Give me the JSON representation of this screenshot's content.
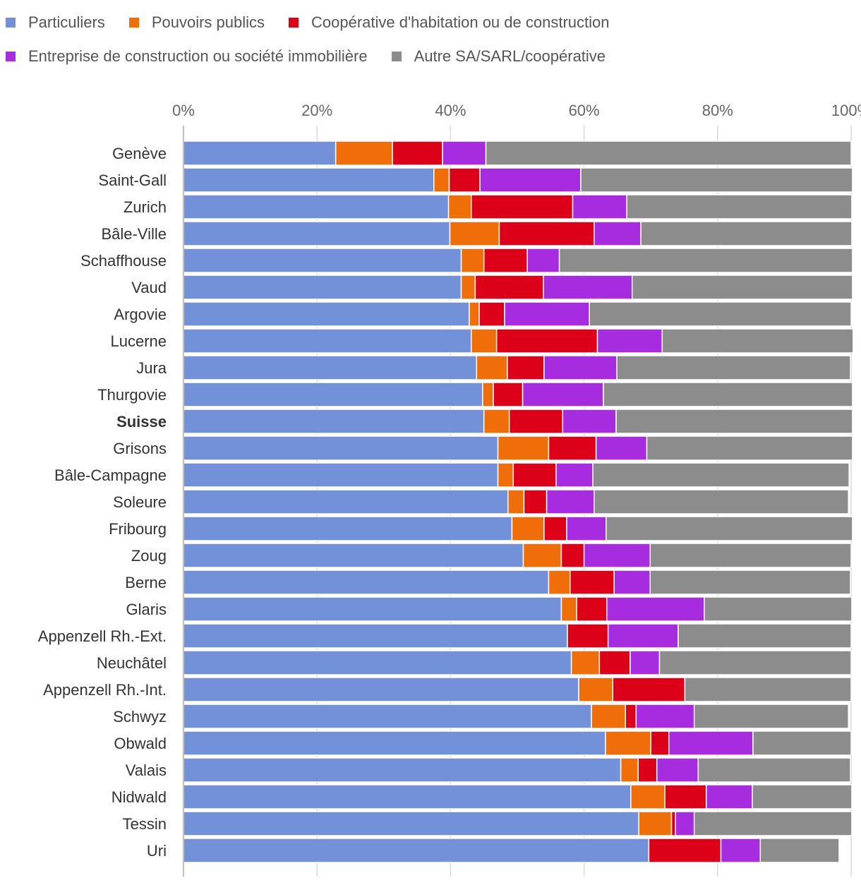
{
  "chart_data": {
    "type": "bar",
    "orientation": "horizontal",
    "stacked": "percent",
    "xlim": [
      0,
      100
    ],
    "x_ticks": [
      "0%",
      "20%",
      "40%",
      "60%",
      "80%",
      "100%"
    ],
    "legend_position": "top",
    "grid": true,
    "categories": [
      "Genève",
      "Saint-Gall",
      "Zurich",
      "Bâle-Ville",
      "Schaffhouse",
      "Vaud",
      "Argovie",
      "Lucerne",
      "Jura",
      "Thurgovie",
      "Suisse",
      "Grisons",
      "Bâle-Campagne",
      "Soleure",
      "Fribourg",
      "Zoug",
      "Berne",
      "Glaris",
      "Appenzell Rh.-Ext.",
      "Neuchâtel",
      "Appenzell Rh.-Int.",
      "Schwyz",
      "Obwald",
      "Valais",
      "Nidwald",
      "Tessin",
      "Uri"
    ],
    "highlight_category": "Suisse",
    "series": [
      {
        "name": "Particuliers",
        "color": "#7391d9",
        "values": [
          22.8,
          37.5,
          39.7,
          39.9,
          41.6,
          41.6,
          42.8,
          43.1,
          43.9,
          44.8,
          45.0,
          47.1,
          47.1,
          48.6,
          49.2,
          50.9,
          54.7,
          56.6,
          57.5,
          58.1,
          59.2,
          61.1,
          63.2,
          65.5,
          67.0,
          68.2,
          69.7
        ]
      },
      {
        "name": "Pouvoirs publics",
        "color": "#f06e0a",
        "values": [
          8.5,
          2.3,
          3.4,
          7.4,
          3.4,
          2.1,
          1.5,
          3.8,
          4.6,
          1.6,
          3.8,
          7.6,
          2.3,
          2.4,
          4.8,
          5.7,
          3.2,
          2.3,
          0.0,
          4.2,
          5.1,
          5.1,
          6.8,
          2.6,
          5.1,
          4.9,
          0.0
        ]
      },
      {
        "name": "Coopérative d'habitation ou de construction",
        "color": "#dc0018",
        "values": [
          7.5,
          4.6,
          15.2,
          14.2,
          6.5,
          10.2,
          3.8,
          15.1,
          5.5,
          4.4,
          8.0,
          7.1,
          6.4,
          3.4,
          3.4,
          3.4,
          6.6,
          4.5,
          6.1,
          4.6,
          10.8,
          1.6,
          2.7,
          2.8,
          6.2,
          0.6,
          10.8
        ]
      },
      {
        "name": "Entreprise de construction ou société immobilière",
        "color": "#a72ce0",
        "values": [
          6.5,
          15.1,
          8.1,
          7.0,
          4.8,
          13.3,
          12.7,
          9.7,
          10.9,
          12.1,
          8.0,
          7.6,
          5.5,
          7.1,
          5.9,
          9.9,
          5.4,
          14.6,
          10.5,
          4.4,
          0.0,
          8.7,
          12.6,
          6.2,
          6.9,
          2.8,
          5.9
        ]
      },
      {
        "name": "Autre SA/SARL/coopérative",
        "color": "#8c8c8c",
        "values": [
          54.7,
          40.7,
          33.7,
          31.6,
          43.9,
          33.0,
          39.2,
          28.6,
          35.0,
          37.3,
          35.4,
          30.8,
          38.4,
          38.1,
          36.9,
          30.1,
          30.0,
          22.1,
          25.9,
          28.7,
          24.9,
          23.1,
          14.7,
          22.8,
          14.9,
          23.6,
          11.8
        ]
      }
    ]
  }
}
